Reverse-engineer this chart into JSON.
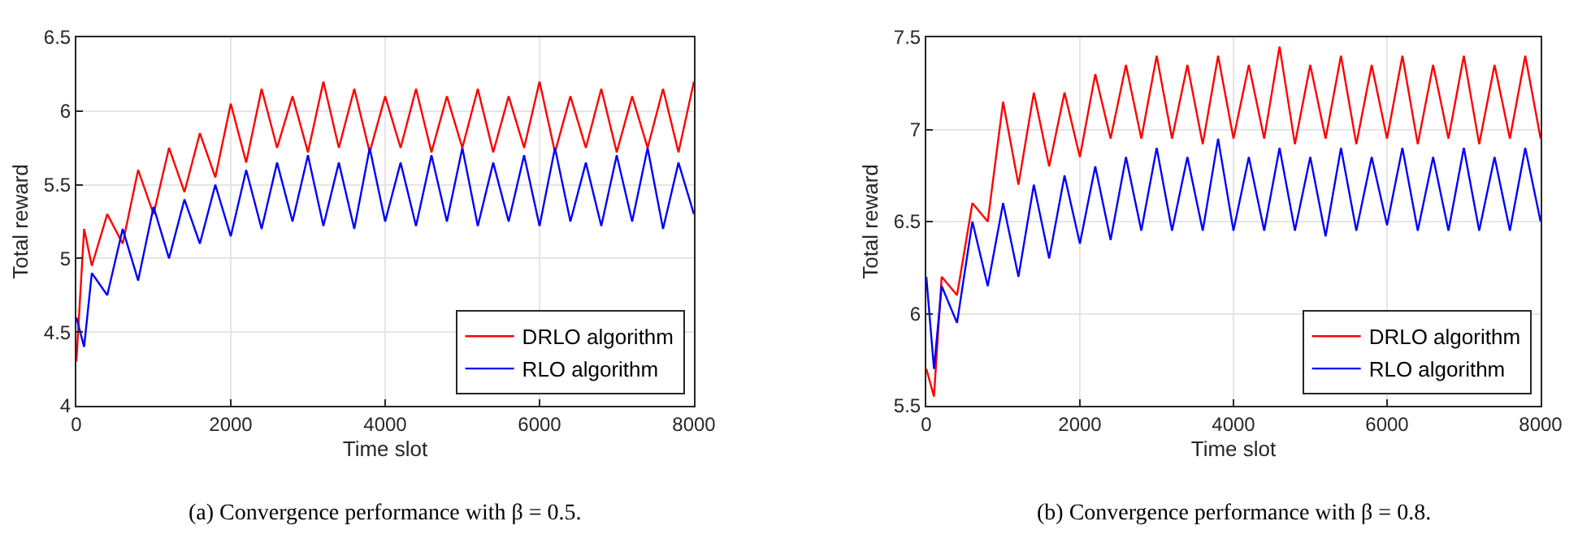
{
  "chart_data": [
    {
      "type": "line",
      "xlabel": "Time slot",
      "ylabel": "Total reward",
      "xlim": [
        0,
        8000
      ],
      "xticks": [
        0,
        2000,
        4000,
        6000,
        8000
      ],
      "ylim": [
        4,
        6.5
      ],
      "yticks": [
        4,
        4.5,
        5,
        5.5,
        6,
        6.5
      ],
      "grid": true,
      "legend": "bottom right",
      "annotations": [
        "(a) Convergence performance with β = 0.5."
      ],
      "x": [
        0,
        100,
        200,
        400,
        600,
        800,
        1000,
        1200,
        1400,
        1600,
        1800,
        2000,
        2200,
        2400,
        2600,
        2800,
        3000,
        3200,
        3400,
        3600,
        3800,
        4000,
        4200,
        4400,
        4600,
        4800,
        5000,
        5200,
        5400,
        5600,
        5800,
        6000,
        6200,
        6400,
        6600,
        6800,
        7000,
        7200,
        7400,
        7600,
        7800,
        8000
      ],
      "series": [
        {
          "name": "DRLO algorithm",
          "color": "#ff0000",
          "values": [
            4.3,
            5.2,
            4.95,
            5.3,
            5.1,
            5.6,
            5.3,
            5.75,
            5.45,
            5.85,
            5.55,
            6.05,
            5.65,
            6.15,
            5.75,
            6.1,
            5.72,
            6.2,
            5.75,
            6.15,
            5.72,
            6.1,
            5.75,
            6.15,
            5.72,
            6.1,
            5.75,
            6.15,
            5.72,
            6.1,
            5.75,
            6.2,
            5.72,
            6.1,
            5.75,
            6.15,
            5.72,
            6.1,
            5.75,
            6.15,
            5.72,
            6.2
          ]
        },
        {
          "name": "RLO algorithm",
          "color": "#0000ff",
          "values": [
            4.6,
            4.4,
            4.9,
            4.75,
            5.2,
            4.85,
            5.35,
            5.0,
            5.4,
            5.1,
            5.5,
            5.15,
            5.6,
            5.2,
            5.65,
            5.25,
            5.7,
            5.22,
            5.65,
            5.2,
            5.75,
            5.25,
            5.65,
            5.22,
            5.7,
            5.25,
            5.75,
            5.22,
            5.65,
            5.25,
            5.7,
            5.22,
            5.75,
            5.25,
            5.65,
            5.22,
            5.7,
            5.25,
            5.75,
            5.2,
            5.65,
            5.3
          ]
        }
      ]
    },
    {
      "type": "line",
      "xlabel": "Time slot",
      "ylabel": "Total reward",
      "xlim": [
        0,
        8000
      ],
      "xticks": [
        0,
        2000,
        4000,
        6000,
        8000
      ],
      "ylim": [
        5.5,
        7.5
      ],
      "yticks": [
        5.5,
        6,
        6.5,
        7,
        7.5
      ],
      "grid": true,
      "legend": "bottom right",
      "annotations": [
        "(b) Convergence performance with β = 0.8."
      ],
      "x": [
        0,
        100,
        200,
        400,
        600,
        800,
        1000,
        1200,
        1400,
        1600,
        1800,
        2000,
        2200,
        2400,
        2600,
        2800,
        3000,
        3200,
        3400,
        3600,
        3800,
        4000,
        4200,
        4400,
        4600,
        4800,
        5000,
        5200,
        5400,
        5600,
        5800,
        6000,
        6200,
        6400,
        6600,
        6800,
        7000,
        7200,
        7400,
        7600,
        7800,
        8000
      ],
      "series": [
        {
          "name": "DRLO algorithm",
          "color": "#ff0000",
          "values": [
            5.7,
            5.55,
            6.2,
            6.1,
            6.6,
            6.5,
            7.15,
            6.7,
            7.2,
            6.8,
            7.2,
            6.85,
            7.3,
            6.95,
            7.35,
            6.95,
            7.4,
            6.95,
            7.35,
            6.92,
            7.4,
            6.95,
            7.35,
            6.95,
            7.45,
            6.92,
            7.35,
            6.95,
            7.4,
            6.92,
            7.35,
            6.95,
            7.4,
            6.92,
            7.35,
            6.95,
            7.4,
            6.92,
            7.35,
            6.95,
            7.4,
            6.95
          ]
        },
        {
          "name": "RLO algorithm",
          "color": "#0000ff",
          "values": [
            6.2,
            5.7,
            6.15,
            5.95,
            6.5,
            6.15,
            6.6,
            6.2,
            6.7,
            6.3,
            6.75,
            6.38,
            6.8,
            6.4,
            6.85,
            6.45,
            6.9,
            6.45,
            6.85,
            6.45,
            6.95,
            6.45,
            6.85,
            6.45,
            6.9,
            6.45,
            6.85,
            6.42,
            6.9,
            6.45,
            6.85,
            6.48,
            6.9,
            6.45,
            6.85,
            6.45,
            6.9,
            6.45,
            6.85,
            6.45,
            6.9,
            6.5
          ]
        }
      ]
    }
  ]
}
